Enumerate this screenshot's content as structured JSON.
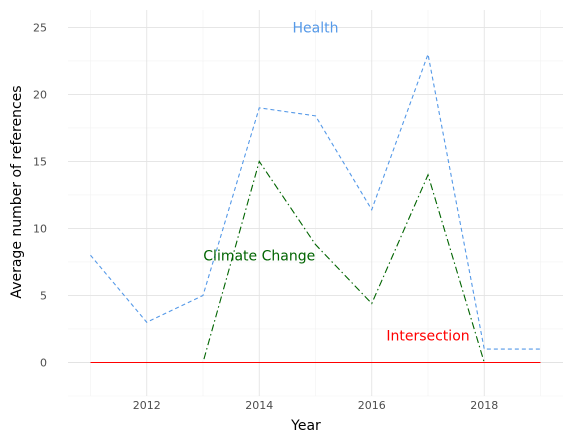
{
  "chart_data": {
    "type": "line",
    "xlabel": "Year",
    "ylabel": "Average number of references",
    "xlim": [
      2010.6,
      2019.4
    ],
    "ylim": [
      -2.5,
      26.3
    ],
    "x_ticks": [
      2012,
      2014,
      2016,
      2018
    ],
    "y_ticks": [
      0,
      5,
      10,
      15,
      20,
      25
    ],
    "grid": true,
    "x": [
      2011,
      2012,
      2013,
      2014,
      2015,
      2016,
      2017,
      2018,
      2019
    ],
    "series": [
      {
        "name": "Health",
        "color": "#5599e8",
        "dash": "dashed",
        "values": [
          8,
          3,
          5,
          19,
          18.4,
          11.4,
          23,
          1,
          1
        ],
        "label_x": 2015,
        "label_y": 25
      },
      {
        "name": "Climate Change",
        "color": "#006400",
        "dash": "dashdot",
        "values": [
          0,
          0,
          0,
          15,
          8.8,
          4.4,
          14,
          0,
          0
        ],
        "label_x": 2014,
        "label_y": 8
      },
      {
        "name": "Intersection",
        "color": "#ff0000",
        "dash": "solid",
        "values": [
          0,
          0,
          0,
          0,
          0,
          0,
          0,
          0,
          0
        ],
        "label_x": 2017,
        "label_y": 2
      }
    ]
  }
}
